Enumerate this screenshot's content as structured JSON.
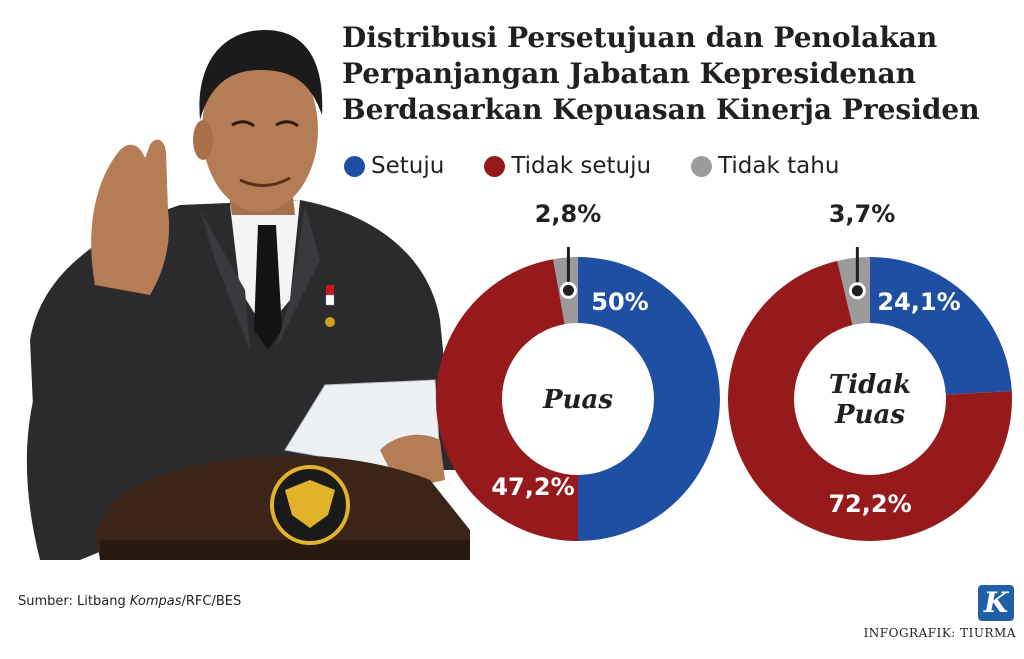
{
  "header": {
    "title_lines": [
      "Distribusi Persetujuan dan Penolakan",
      "Perpanjangan Jabatan Kepresidenan",
      "Berdasarkan Kepuasan Kinerja Presiden"
    ]
  },
  "legend": [
    {
      "label": "Setuju",
      "color": "#1f4fa3"
    },
    {
      "label": "Tidak setuju",
      "color": "#96191c"
    },
    {
      "label": "Tidak tahu",
      "color": "#9b9b9b"
    }
  ],
  "chart_data": [
    {
      "type": "pie",
      "center_label": [
        "Puas"
      ],
      "labels": [
        "Setuju",
        "Tidak setuju",
        "Tidak tahu"
      ],
      "values": [
        50,
        47.2,
        2.8
      ],
      "value_labels": [
        "50%",
        "47,2%",
        "2,8%"
      ],
      "colors": [
        "#1f4fa3",
        "#96191c",
        "#9b9b9b"
      ]
    },
    {
      "type": "pie",
      "center_label": [
        "Tidak",
        "Puas"
      ],
      "labels": [
        "Setuju",
        "Tidak setuju",
        "Tidak tahu"
      ],
      "values": [
        24.1,
        72.2,
        3.7
      ],
      "value_labels": [
        "24,1%",
        "72,2%",
        "3,7%"
      ],
      "colors": [
        "#1f4fa3",
        "#96191c",
        "#9b9b9b"
      ]
    }
  ],
  "footer": {
    "source_prefix": "Sumber: Litbang ",
    "source_italic": "Kompas",
    "source_suffix": "/RFC/BES",
    "credit": "INFOGRAFIK: TIURMA",
    "logo_letter": "K"
  }
}
